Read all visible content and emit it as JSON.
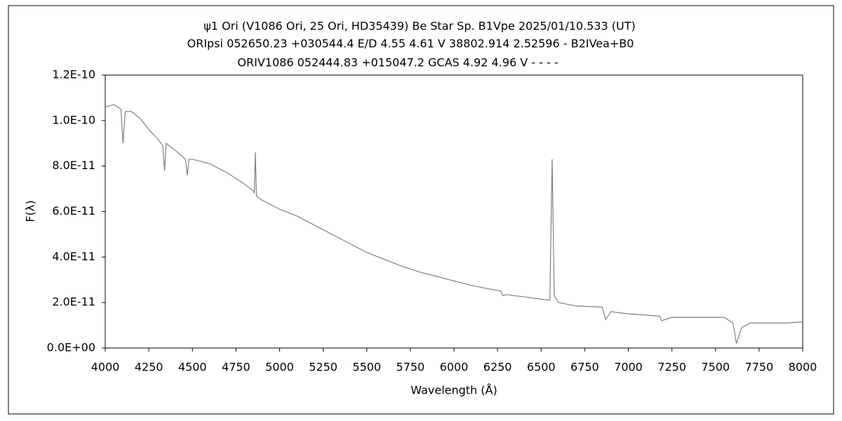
{
  "chart_data": {
    "type": "line",
    "title_lines": [
      "ψ1 Ori (V1086 Ori, 25 Ori, HD35439)    Be Star    Sp. B1Vpe    2025/01/10.533 (UT)",
      "ORIpsi 052650.23 +030544.4 E/D 4.55 4.61 V 38802.914 2.52596 - B2IVea+B0",
      "ORIV1086 052444.83 +015047.2 GCAS 4.92 4.96 V - - - -"
    ],
    "xlabel": "Wavelength (Å)",
    "ylabel": "F(λ)",
    "x": [
      4000,
      4050,
      4090,
      4102,
      4115,
      4150,
      4200,
      4250,
      4300,
      4330,
      4340,
      4350,
      4400,
      4460,
      4471,
      4480,
      4500,
      4600,
      4700,
      4800,
      4850,
      4855,
      4861,
      4867,
      4880,
      4900,
      4950,
      5000,
      5100,
      5200,
      5300,
      5400,
      5500,
      5600,
      5700,
      5800,
      5900,
      6000,
      6100,
      6200,
      6270,
      6280,
      6300,
      6400,
      6500,
      6550,
      6563,
      6575,
      6600,
      6700,
      6850,
      6870,
      6900,
      7000,
      7100,
      7180,
      7190,
      7250,
      7400,
      7550,
      7600,
      7620,
      7650,
      7700,
      7800,
      7900,
      8000
    ],
    "values": [
      1.06e-10,
      1.07e-10,
      1.05e-10,
      9e-11,
      1.04e-10,
      1.04e-10,
      1.01e-10,
      9.6e-11,
      9.2e-11,
      8.9e-11,
      7.8e-11,
      9e-11,
      8.7e-11,
      8.3e-11,
      7.6e-11,
      8.3e-11,
      8.3e-11,
      8.1e-11,
      7.7e-11,
      7.2e-11,
      6.9e-11,
      6.8e-11,
      8.6e-11,
      6.7e-11,
      6.6e-11,
      6.5e-11,
      6.3e-11,
      6.1e-11,
      5.8e-11,
      5.4e-11,
      5e-11,
      4.6e-11,
      4.2e-11,
      3.9e-11,
      3.6e-11,
      3.35e-11,
      3.15e-11,
      2.95e-11,
      2.75e-11,
      2.6e-11,
      2.5e-11,
      2.3e-11,
      2.35e-11,
      2.25e-11,
      2.15e-11,
      2.1e-11,
      8.3e-11,
      2.3e-11,
      2e-11,
      1.85e-11,
      1.8e-11,
      1.25e-11,
      1.6e-11,
      1.5e-11,
      1.45e-11,
      1.4e-11,
      1.2e-11,
      1.35e-11,
      1.35e-11,
      1.35e-11,
      1.1e-11,
      2e-12,
      9e-12,
      1.1e-11,
      1.1e-11,
      1.1e-11,
      1.15e-11
    ],
    "color": "#808080",
    "xlim": [
      4000,
      8000
    ],
    "xticks": [
      4000,
      4250,
      4500,
      4750,
      5000,
      5250,
      5500,
      5750,
      6000,
      6250,
      6500,
      6750,
      7000,
      7250,
      7500,
      7750,
      8000
    ],
    "ylim": [
      0,
      1.2e-10
    ],
    "yticks": [
      {
        "value": 0,
        "label": "0.0E+00"
      },
      {
        "value": 2e-11,
        "label": "2.0E-11"
      },
      {
        "value": 4e-11,
        "label": "4.0E-11"
      },
      {
        "value": 6e-11,
        "label": "6.0E-11"
      },
      {
        "value": 8e-11,
        "label": "8.0E-11"
      },
      {
        "value": 1e-10,
        "label": "1.0E-10"
      },
      {
        "value": 1.2e-10,
        "label": "1.2E-10"
      }
    ],
    "grid": false
  }
}
